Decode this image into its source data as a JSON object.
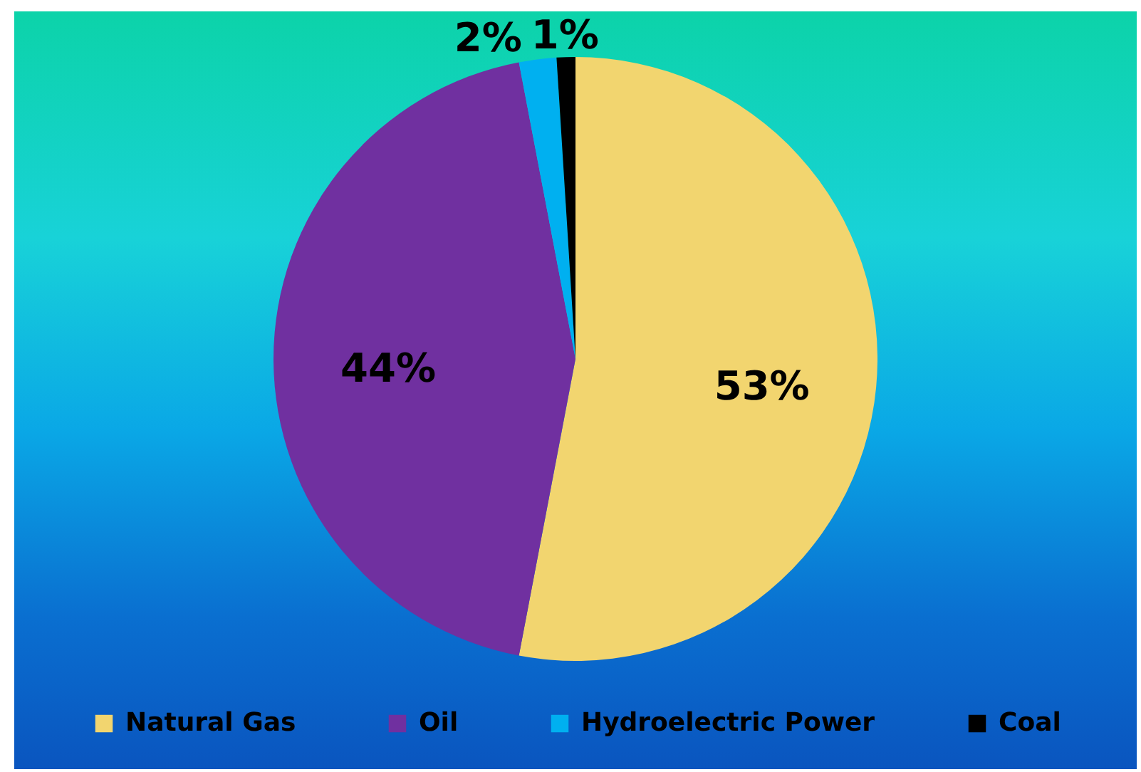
{
  "chart_data": {
    "type": "pie",
    "categories": [
      "Natural Gas",
      "Oil",
      "Hydroelectric Power",
      "Coal"
    ],
    "values": [
      53,
      44,
      2,
      1
    ],
    "colors": [
      "#f2d56f",
      "#7030a0",
      "#00b0f0",
      "#000000"
    ],
    "value_labels": [
      "53%",
      "44%",
      "2%",
      "1%"
    ],
    "legend": "bottom"
  }
}
